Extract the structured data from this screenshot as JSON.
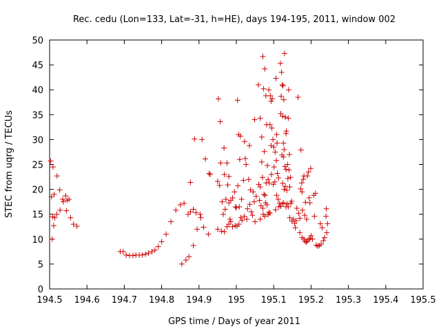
{
  "chart_data": {
    "type": "scatter",
    "title": "Rec. cedu (Lon=133, Lat=-31, h=HE), days 194-195, 2011, window 002",
    "xlabel": "GPS time / Days of year 2011",
    "ylabel": "STEC from uqrg / TECUs",
    "xlim": [
      194.5,
      195.5
    ],
    "ylim": [
      0,
      50
    ],
    "xticks": [
      194.5,
      194.6,
      194.7,
      194.8,
      194.9,
      195,
      195.1,
      195.2,
      195.3,
      195.4,
      195.5
    ],
    "xtick_labels": [
      "194.5",
      "194.6",
      "194.7",
      "194.8",
      "194.9",
      "195",
      "195.1",
      "195.2",
      "195.3",
      "195.4",
      "195.5"
    ],
    "yticks": [
      0,
      5,
      10,
      15,
      20,
      25,
      30,
      35,
      40,
      45,
      50
    ],
    "ytick_labels": [
      "0",
      "5",
      "10",
      "15",
      "20",
      "25",
      "30",
      "35",
      "40",
      "45",
      "50"
    ],
    "grid": false,
    "marker": "+",
    "color": "#cc0000",
    "points": [
      [
        194.503,
        25.7
      ],
      [
        194.509,
        24.5
      ],
      [
        194.505,
        18.5
      ],
      [
        194.512,
        19.0
      ],
      [
        194.508,
        14.5
      ],
      [
        194.514,
        14.3
      ],
      [
        194.511,
        12.7
      ],
      [
        194.507,
        10.0
      ],
      [
        194.52,
        22.7
      ],
      [
        194.527,
        19.9
      ],
      [
        194.519,
        15.0
      ],
      [
        194.528,
        15.8
      ],
      [
        194.535,
        18.0
      ],
      [
        194.537,
        17.5
      ],
      [
        194.543,
        18.7
      ],
      [
        194.547,
        17.8
      ],
      [
        194.552,
        18.0
      ],
      [
        194.545,
        15.7
      ],
      [
        194.556,
        14.3
      ],
      [
        194.564,
        13.0
      ],
      [
        194.573,
        12.6
      ],
      [
        194.689,
        7.5
      ],
      [
        194.697,
        7.5
      ],
      [
        194.705,
        6.8
      ],
      [
        194.714,
        6.7
      ],
      [
        194.723,
        6.7
      ],
      [
        194.731,
        6.8
      ],
      [
        194.74,
        6.8
      ],
      [
        194.748,
        6.8
      ],
      [
        194.757,
        7.0
      ],
      [
        194.765,
        7.2
      ],
      [
        194.774,
        7.5
      ],
      [
        194.782,
        7.8
      ],
      [
        194.791,
        8.5
      ],
      [
        194.8,
        9.5
      ],
      [
        194.812,
        11.0
      ],
      [
        194.825,
        13.5
      ],
      [
        194.838,
        15.8
      ],
      [
        194.85,
        16.9
      ],
      [
        194.86,
        17.2
      ],
      [
        194.854,
        5.0
      ],
      [
        194.865,
        5.8
      ],
      [
        194.873,
        6.5
      ],
      [
        194.885,
        8.7
      ],
      [
        194.877,
        21.4
      ],
      [
        194.888,
        30.1
      ],
      [
        194.871,
        15.0
      ],
      [
        194.877,
        15.5
      ],
      [
        194.885,
        16.0
      ],
      [
        194.892,
        15.3
      ],
      [
        194.895,
        12.0
      ],
      [
        194.905,
        14.3
      ],
      [
        194.903,
        15.0
      ],
      [
        194.908,
        30.0
      ],
      [
        194.917,
        26.1
      ],
      [
        194.912,
        12.4
      ],
      [
        194.927,
        23.2
      ],
      [
        194.925,
        11.0
      ],
      [
        194.93,
        23.0
      ],
      [
        194.952,
        38.2
      ],
      [
        194.957,
        33.6
      ],
      [
        194.967,
        28.3
      ],
      [
        194.95,
        21.6
      ],
      [
        194.955,
        20.8
      ],
      [
        194.958,
        25.3
      ],
      [
        194.968,
        23.0
      ],
      [
        194.975,
        25.3
      ],
      [
        194.977,
        20.9
      ],
      [
        194.98,
        22.6
      ],
      [
        194.962,
        17.5
      ],
      [
        194.972,
        18.0
      ],
      [
        194.98,
        17.3
      ],
      [
        194.985,
        17.8
      ],
      [
        194.99,
        18.3
      ],
      [
        194.995,
        19.5
      ],
      [
        194.95,
        12.0
      ],
      [
        194.96,
        11.6
      ],
      [
        194.968,
        11.5
      ],
      [
        194.975,
        12.5
      ],
      [
        194.98,
        13.0
      ],
      [
        194.985,
        13.5
      ],
      [
        194.99,
        12.5
      ],
      [
        194.997,
        12.7
      ],
      [
        194.965,
        15.0
      ],
      [
        194.97,
        16.0
      ],
      [
        194.983,
        14.0
      ],
      [
        194.998,
        16.5
      ],
      [
        195.003,
        37.9
      ],
      [
        195.006,
        31.0
      ],
      [
        195.011,
        30.7
      ],
      [
        195.009,
        26.0
      ],
      [
        195.004,
        20.7
      ],
      [
        195.0,
        16.3
      ],
      [
        195.002,
        12.6
      ],
      [
        195.007,
        13.0
      ],
      [
        195.012,
        14.3
      ],
      [
        195.015,
        13.8
      ],
      [
        195.008,
        16.5
      ],
      [
        195.014,
        18.0
      ],
      [
        195.019,
        21.8
      ],
      [
        195.022,
        29.6
      ],
      [
        195.024,
        26.2
      ],
      [
        195.026,
        25.0
      ],
      [
        195.021,
        14.6
      ],
      [
        195.028,
        14.0
      ],
      [
        195.033,
        22.0
      ],
      [
        195.035,
        28.8
      ],
      [
        195.038,
        19.9
      ],
      [
        195.03,
        16.1
      ],
      [
        195.036,
        17.0
      ],
      [
        195.04,
        15.5
      ],
      [
        195.045,
        19.5
      ],
      [
        195.049,
        34.0
      ],
      [
        195.043,
        14.8
      ],
      [
        195.053,
        18.6
      ],
      [
        195.048,
        17.5
      ],
      [
        195.05,
        13.5
      ],
      [
        195.059,
        41.0
      ],
      [
        195.064,
        34.3
      ],
      [
        195.068,
        30.5
      ],
      [
        195.071,
        46.7
      ],
      [
        195.073,
        40.2
      ],
      [
        195.076,
        44.2
      ],
      [
        195.079,
        38.8
      ],
      [
        195.081,
        33.0
      ],
      [
        195.075,
        27.6
      ],
      [
        195.068,
        25.5
      ],
      [
        195.06,
        21.0
      ],
      [
        195.064,
        20.5
      ],
      [
        195.07,
        22.4
      ],
      [
        195.074,
        19.0
      ],
      [
        195.077,
        18.8
      ],
      [
        195.08,
        21.3
      ],
      [
        195.083,
        24.8
      ],
      [
        195.085,
        22.0
      ],
      [
        195.088,
        21.3
      ],
      [
        195.062,
        17.8
      ],
      [
        195.066,
        16.7
      ],
      [
        195.071,
        16.2
      ],
      [
        195.078,
        17.3
      ],
      [
        195.082,
        16.9
      ],
      [
        195.087,
        15.4
      ],
      [
        195.064,
        14.0
      ],
      [
        195.072,
        15.0
      ],
      [
        195.076,
        14.6
      ],
      [
        195.085,
        14.9
      ],
      [
        195.09,
        15.2
      ],
      [
        195.087,
        40.0
      ],
      [
        195.091,
        38.8
      ],
      [
        195.093,
        37.7
      ],
      [
        195.096,
        38.2
      ],
      [
        195.09,
        33.0
      ],
      [
        195.095,
        32.3
      ],
      [
        195.093,
        28.8
      ],
      [
        195.098,
        30.0
      ],
      [
        195.1,
        28.5
      ],
      [
        195.101,
        24.5
      ],
      [
        195.094,
        23.0
      ],
      [
        195.099,
        21.0
      ],
      [
        195.103,
        21.5
      ],
      [
        195.106,
        42.3
      ],
      [
        195.108,
        31.0
      ],
      [
        195.109,
        29.3
      ],
      [
        195.104,
        27.5
      ],
      [
        195.107,
        25.8
      ],
      [
        195.11,
        23.2
      ],
      [
        195.113,
        22.3
      ],
      [
        195.108,
        18.8
      ],
      [
        195.112,
        18.0
      ],
      [
        195.116,
        17.2
      ],
      [
        195.119,
        16.6
      ],
      [
        195.105,
        15.9
      ],
      [
        195.114,
        16.5
      ],
      [
        195.118,
        45.3
      ],
      [
        195.121,
        43.5
      ],
      [
        195.123,
        41.0
      ],
      [
        195.125,
        40.8
      ],
      [
        195.12,
        38.7
      ],
      [
        195.127,
        38.0
      ],
      [
        195.119,
        35.2
      ],
      [
        195.124,
        34.7
      ],
      [
        195.131,
        34.5
      ],
      [
        195.134,
        31.7
      ],
      [
        195.133,
        31.2
      ],
      [
        195.129,
        47.3
      ],
      [
        195.126,
        29.3
      ],
      [
        195.128,
        28.0
      ],
      [
        195.122,
        26.9
      ],
      [
        195.126,
        26.5
      ],
      [
        195.13,
        24.6
      ],
      [
        195.133,
        24.0
      ],
      [
        195.137,
        25.0
      ],
      [
        195.124,
        21.2
      ],
      [
        195.128,
        20.0
      ],
      [
        195.131,
        20.6
      ],
      [
        195.135,
        19.8
      ],
      [
        195.138,
        22.2
      ],
      [
        195.14,
        40.0
      ],
      [
        195.139,
        34.3
      ],
      [
        195.142,
        27.0
      ],
      [
        195.141,
        23.9
      ],
      [
        195.145,
        22.4
      ],
      [
        195.143,
        20.5
      ],
      [
        195.148,
        17.6
      ],
      [
        195.139,
        16.5
      ],
      [
        195.146,
        17.2
      ],
      [
        195.123,
        17.1
      ],
      [
        195.127,
        17.3
      ],
      [
        195.133,
        16.5
      ],
      [
        195.136,
        17.1
      ],
      [
        195.143,
        14.3
      ],
      [
        195.149,
        13.6
      ],
      [
        195.153,
        14.0
      ],
      [
        195.156,
        13.2
      ],
      [
        195.16,
        13.7
      ],
      [
        195.158,
        12.3
      ],
      [
        195.165,
        38.5
      ],
      [
        195.162,
        16.2
      ],
      [
        195.167,
        15.2
      ],
      [
        195.17,
        14.2
      ],
      [
        195.173,
        27.9
      ],
      [
        195.175,
        21.3
      ],
      [
        195.172,
        20.1
      ],
      [
        195.176,
        19.5
      ],
      [
        195.179,
        22.0
      ],
      [
        195.181,
        22.7
      ],
      [
        195.177,
        15.8
      ],
      [
        195.183,
        14.8
      ],
      [
        195.188,
        14.0
      ],
      [
        195.185,
        17.4
      ],
      [
        195.19,
        22.7
      ],
      [
        195.193,
        23.5
      ],
      [
        195.195,
        18.3
      ],
      [
        195.197,
        17.3
      ],
      [
        195.199,
        24.2
      ],
      [
        195.17,
        11.3
      ],
      [
        195.176,
        10.3
      ],
      [
        195.181,
        10.0
      ],
      [
        195.184,
        9.6
      ],
      [
        195.187,
        9.4
      ],
      [
        195.19,
        9.6
      ],
      [
        195.194,
        9.9
      ],
      [
        195.197,
        10.2
      ],
      [
        195.2,
        10.7
      ],
      [
        195.204,
        10.0
      ],
      [
        195.207,
        18.8
      ],
      [
        195.209,
        14.6
      ],
      [
        195.212,
        19.2
      ],
      [
        195.214,
        8.8
      ],
      [
        195.218,
        8.6
      ],
      [
        195.222,
        8.7
      ],
      [
        195.225,
        13.1
      ],
      [
        195.227,
        9.0
      ],
      [
        195.23,
        12.3
      ],
      [
        195.233,
        9.7
      ],
      [
        195.236,
        10.3
      ],
      [
        195.24,
        14.6
      ],
      [
        195.241,
        16.1
      ],
      [
        195.242,
        11.3
      ],
      [
        195.244,
        13.1
      ]
    ]
  }
}
